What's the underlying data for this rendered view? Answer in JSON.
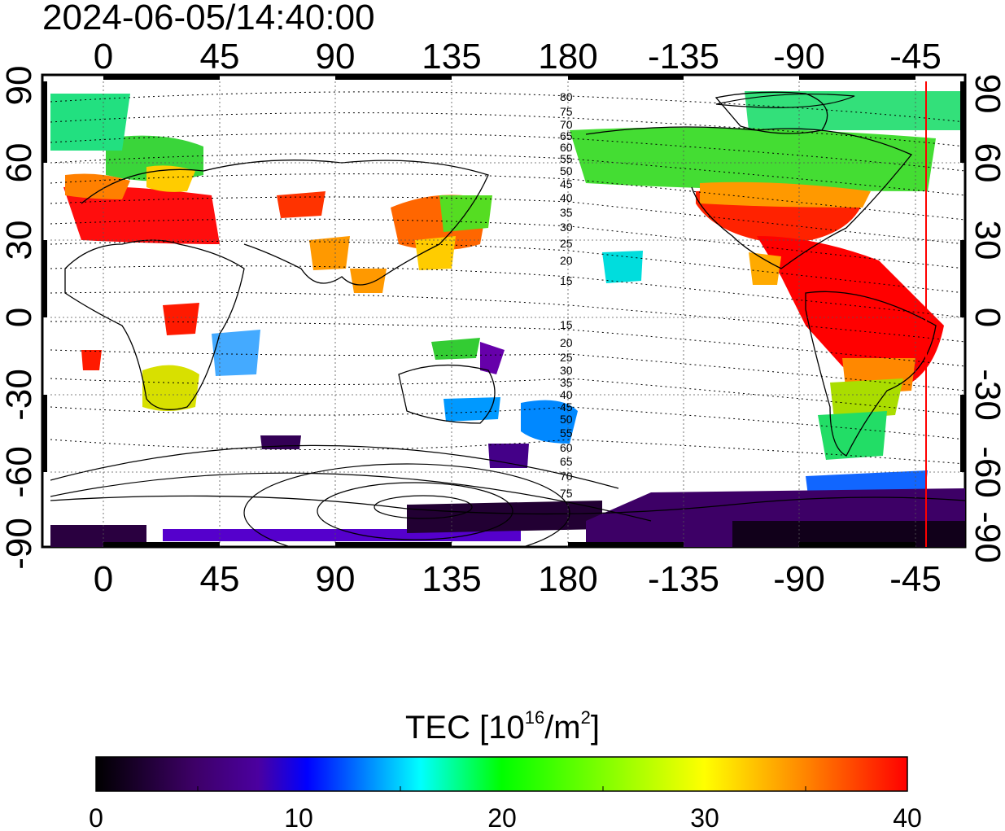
{
  "header": {
    "timestamp": "2024-06-05/14:40:00"
  },
  "map": {
    "lon_ticks": [
      "0",
      "45",
      "90",
      "135",
      "180",
      "-135",
      "-90",
      "-45"
    ],
    "lat_ticks": [
      "90",
      "60",
      "30",
      "0",
      "-30",
      "-60",
      "-90"
    ],
    "contour_labels_north": [
      "80",
      "75",
      "70",
      "65",
      "60",
      "55",
      "50",
      "45",
      "40",
      "35",
      "30",
      "25",
      "20",
      "15"
    ],
    "contour_labels_south": [
      "15",
      "20",
      "25",
      "30",
      "35",
      "40",
      "45",
      "50",
      "55",
      "60",
      "65",
      "70",
      "75"
    ],
    "marker_line_color": "#ff0000"
  },
  "colorbar": {
    "title": "TEC  [10",
    "title_exp": "16",
    "title_mid": "/m",
    "title_exp2": "2",
    "title_end": "]",
    "ticks": [
      "0",
      "10",
      "20",
      "30",
      "40"
    ],
    "range": [
      0,
      40
    ],
    "stops": [
      "#000000",
      "#4b0082",
      "#0000ff",
      "#00ffff",
      "#00ff00",
      "#ffff00",
      "#ff7f00",
      "#ff0000"
    ]
  }
}
